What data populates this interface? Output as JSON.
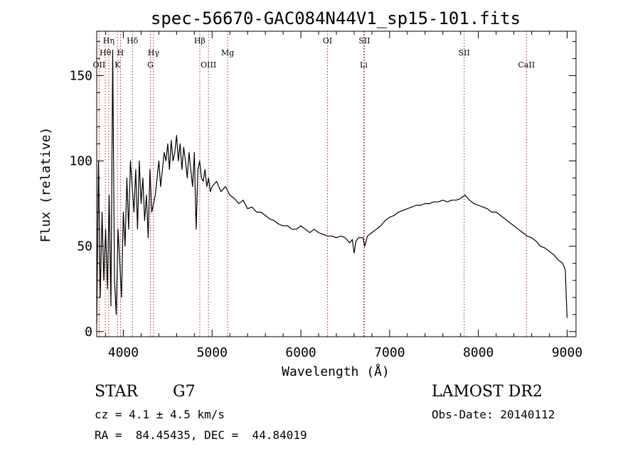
{
  "chart_data": {
    "type": "line",
    "title": "spec-56670-GAC084N44V1_sp15-101.fits",
    "xlabel": "Wavelength (Å)",
    "ylabel": "Flux (relative)",
    "xlim": [
      3700,
      9100
    ],
    "ylim": [
      -3,
      176
    ],
    "xticks": [
      4000,
      5000,
      6000,
      7000,
      8000,
      9000
    ],
    "yticks": [
      0,
      50,
      100,
      150
    ],
    "grid": false,
    "line_color": "#000000",
    "marker_color": "#b22222",
    "series": [
      {
        "name": "spectrum",
        "x": [
          3700,
          3720,
          3740,
          3760,
          3780,
          3800,
          3820,
          3840,
          3860,
          3880,
          3900,
          3920,
          3940,
          3960,
          3980,
          4000,
          4020,
          4040,
          4060,
          4080,
          4100,
          4120,
          4140,
          4160,
          4180,
          4200,
          4220,
          4240,
          4260,
          4280,
          4300,
          4320,
          4340,
          4360,
          4380,
          4400,
          4420,
          4440,
          4460,
          4480,
          4500,
          4520,
          4540,
          4560,
          4580,
          4600,
          4620,
          4640,
          4660,
          4680,
          4700,
          4720,
          4740,
          4760,
          4780,
          4800,
          4820,
          4840,
          4860,
          4880,
          4900,
          4920,
          4940,
          4960,
          4980,
          5000,
          5050,
          5100,
          5150,
          5200,
          5250,
          5300,
          5350,
          5400,
          5450,
          5500,
          5550,
          5600,
          5650,
          5700,
          5750,
          5800,
          5850,
          5900,
          5950,
          6000,
          6050,
          6100,
          6150,
          6200,
          6250,
          6300,
          6350,
          6400,
          6450,
          6500,
          6550,
          6580,
          6600,
          6620,
          6650,
          6700,
          6720,
          6750,
          6800,
          6850,
          6900,
          6950,
          7000,
          7050,
          7100,
          7150,
          7200,
          7250,
          7300,
          7350,
          7400,
          7450,
          7500,
          7550,
          7600,
          7650,
          7700,
          7750,
          7800,
          7850,
          7900,
          7950,
          8000,
          8050,
          8100,
          8150,
          8200,
          8250,
          8300,
          8350,
          8400,
          8450,
          8500,
          8550,
          8600,
          8650,
          8700,
          8750,
          8800,
          8850,
          8900,
          8950,
          8980,
          8990,
          9000
        ],
        "y": [
          5,
          100,
          20,
          70,
          30,
          60,
          25,
          80,
          15,
          165,
          30,
          10,
          60,
          40,
          20,
          70,
          50,
          90,
          60,
          100,
          85,
          70,
          95,
          60,
          100,
          75,
          90,
          65,
          80,
          55,
          95,
          70,
          75,
          80,
          90,
          100,
          85,
          95,
          105,
          100,
          110,
          95,
          112,
          100,
          105,
          115,
          100,
          110,
          95,
          108,
          100,
          90,
          105,
          95,
          85,
          105,
          60,
          95,
          100,
          90,
          88,
          95,
          85,
          90,
          82,
          85,
          88,
          82,
          85,
          80,
          78,
          75,
          77,
          72,
          73,
          70,
          70,
          68,
          66,
          65,
          63,
          62,
          62,
          60,
          60,
          62,
          60,
          58,
          60,
          58,
          57,
          56,
          56,
          55,
          56,
          55,
          52,
          54,
          46,
          53,
          55,
          55,
          50,
          56,
          58,
          60,
          62,
          65,
          67,
          68,
          70,
          71,
          72,
          73,
          74,
          74,
          75,
          75,
          76,
          76,
          77,
          76,
          77,
          77,
          78,
          80,
          77,
          75,
          74,
          73,
          72,
          70,
          70,
          68,
          66,
          64,
          62,
          60,
          58,
          56,
          55,
          53,
          50,
          49,
          47,
          45,
          42,
          40,
          36,
          20,
          8
        ]
      }
    ],
    "lines": [
      {
        "label": "OII",
        "x": 3727,
        "row": 3
      },
      {
        "label": "Hθ",
        "x": 3797,
        "row": 2
      },
      {
        "label": "Hη",
        "x": 3835,
        "row": 1
      },
      {
        "label": "H",
        "x": 3968,
        "row": 2
      },
      {
        "label": "K",
        "x": 3934,
        "row": 3
      },
      {
        "label": "Hδ",
        "x": 4102,
        "row": 1
      },
      {
        "label": "Hγ",
        "x": 4340,
        "row": 2
      },
      {
        "label": "G",
        "x": 4305,
        "row": 3
      },
      {
        "label": "Hβ",
        "x": 4861,
        "row": 1
      },
      {
        "label": "OIII",
        "x": 4959,
        "row": 3
      },
      {
        "label": "Mg",
        "x": 5175,
        "row": 2
      },
      {
        "label": "OI",
        "x": 6300,
        "row": 1
      },
      {
        "label": "SII",
        "x": 6716,
        "row": 1
      },
      {
        "label": "Li",
        "x": 6708,
        "row": 3
      },
      {
        "label": "SII",
        "x": 7840,
        "row": 2
      },
      {
        "label": "CaII",
        "x": 8542,
        "row": 3
      }
    ]
  },
  "info": {
    "class_label": "STAR",
    "subclass": "G7",
    "cz": "cz = 4.1 ± 4.5 km/s",
    "coords": "RA =  84.45435, DEC =  44.84019",
    "survey": "LAMOST DR2",
    "obs_date": "Obs-Date: 20140112"
  }
}
